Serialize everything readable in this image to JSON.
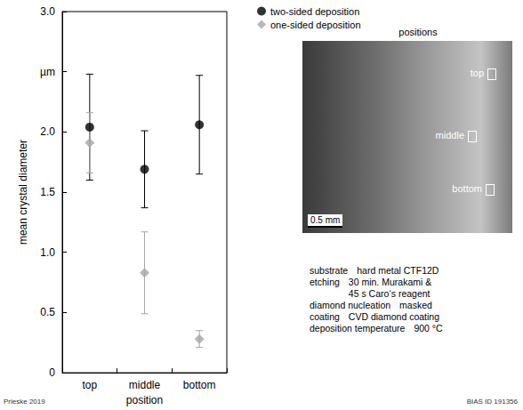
{
  "chart_data": {
    "type": "scatter",
    "categories": [
      "top",
      "middle",
      "bottom"
    ],
    "xlabel": "position",
    "ylabel": "mean crystal diameter",
    "ylim": [
      0,
      3
    ],
    "yticks": [
      0,
      0.5,
      {
        "value": 1.0,
        "label": "1.0"
      },
      1.5,
      {
        "value": 2.0,
        "label": "2.0"
      },
      {
        "value": 2.5,
        "label": "µm"
      },
      {
        "value": 3.0,
        "label": "3.0"
      }
    ],
    "grid": false,
    "legend": "top right",
    "series": [
      {
        "name": "two-sided deposition",
        "color": "#000000",
        "marker": "circle",
        "values": [
          2.04,
          1.69,
          2.06
        ],
        "errors": [
          0.44,
          0.32,
          0.41
        ]
      },
      {
        "name": "one-sided deposition",
        "color": "#a6a6a6",
        "marker": "diamond",
        "values": [
          1.91,
          0.83,
          0.28
        ],
        "errors": [
          0.25,
          0.34,
          0.07
        ]
      }
    ]
  },
  "inset": {
    "title": "positions",
    "labels": [
      "top",
      "middle",
      "bottom"
    ],
    "scale": "0.5 mm"
  },
  "notes": [
    {
      "label": "substrate",
      "text": [
        "hard metal CTF12D"
      ]
    },
    {
      "label": "etching",
      "text": [
        "30 min. Murakami &",
        "45 s Caro‘s reagent"
      ]
    },
    {
      "label": "diamond nucleation",
      "text": [
        "masked"
      ]
    },
    {
      "label": "coating",
      "text": [
        "CVD diamond coating"
      ]
    },
    {
      "label": "deposition temperature",
      "text": [
        "900 °C"
      ]
    }
  ],
  "source": "Prieske 2019",
  "id": "BIAS ID 191356"
}
